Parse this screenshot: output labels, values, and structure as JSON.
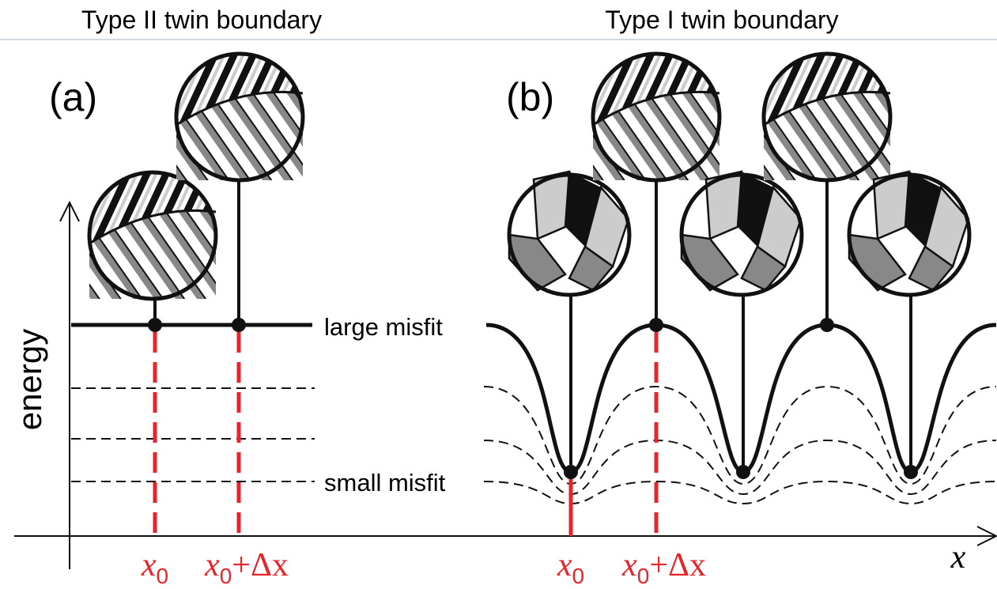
{
  "header": {
    "left_title": "Type II twin boundary",
    "right_title": "Type I twin boundary"
  },
  "panels": [
    {
      "label": "(a)"
    },
    {
      "label": "(b)"
    }
  ],
  "axis": {
    "y_label": "energy",
    "x_label": "x"
  },
  "levels": {
    "high": "large misfit",
    "low": "small misfit"
  },
  "positions": {
    "x0": {
      "var": "x",
      "sub": "0"
    },
    "x0_dx": {
      "var": "x",
      "sub": "0",
      "rest": "+Δx"
    }
  }
}
